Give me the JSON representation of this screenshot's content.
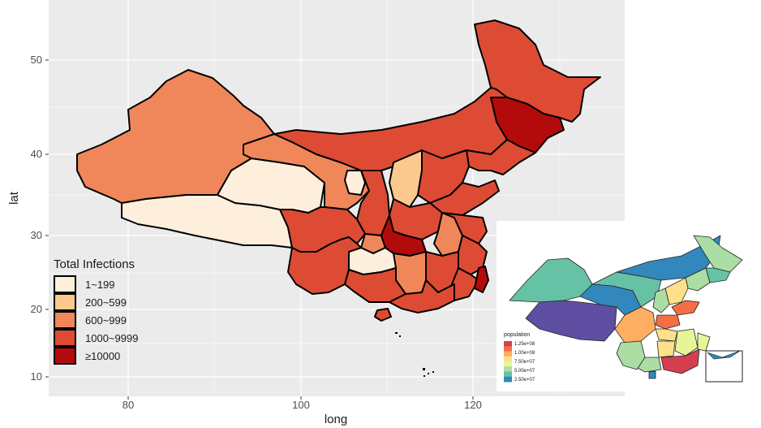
{
  "chart_data": {
    "type": "map",
    "xlabel": "long",
    "ylabel": "lat",
    "x_ticks": [
      80,
      100,
      120
    ],
    "y_ticks": [
      10,
      20,
      30,
      40,
      50
    ],
    "legend": {
      "title": "Total Infections",
      "placement": "bottom-left",
      "items": [
        {
          "label": "1~199",
          "color": "#fdefdc"
        },
        {
          "label": "200~599",
          "color": "#fbc98e"
        },
        {
          "label": "600~999",
          "color": "#f0875a"
        },
        {
          "label": "1000~9999",
          "color": "#dd4b35"
        },
        {
          "label": "≥10000",
          "color": "#b30b0b"
        }
      ]
    },
    "inset": {
      "legend_title": "population",
      "scale_labels": [
        "1.25e+08",
        "1.00e+08",
        "7.50e+07",
        "5.00e+07",
        "2.50e+07"
      ],
      "scale_colors": [
        "#d53e4f",
        "#f46d43",
        "#fdae61",
        "#fee08b",
        "#e6f598",
        "#abdda4",
        "#66c2a5",
        "#3288bd"
      ]
    },
    "grid": true
  }
}
